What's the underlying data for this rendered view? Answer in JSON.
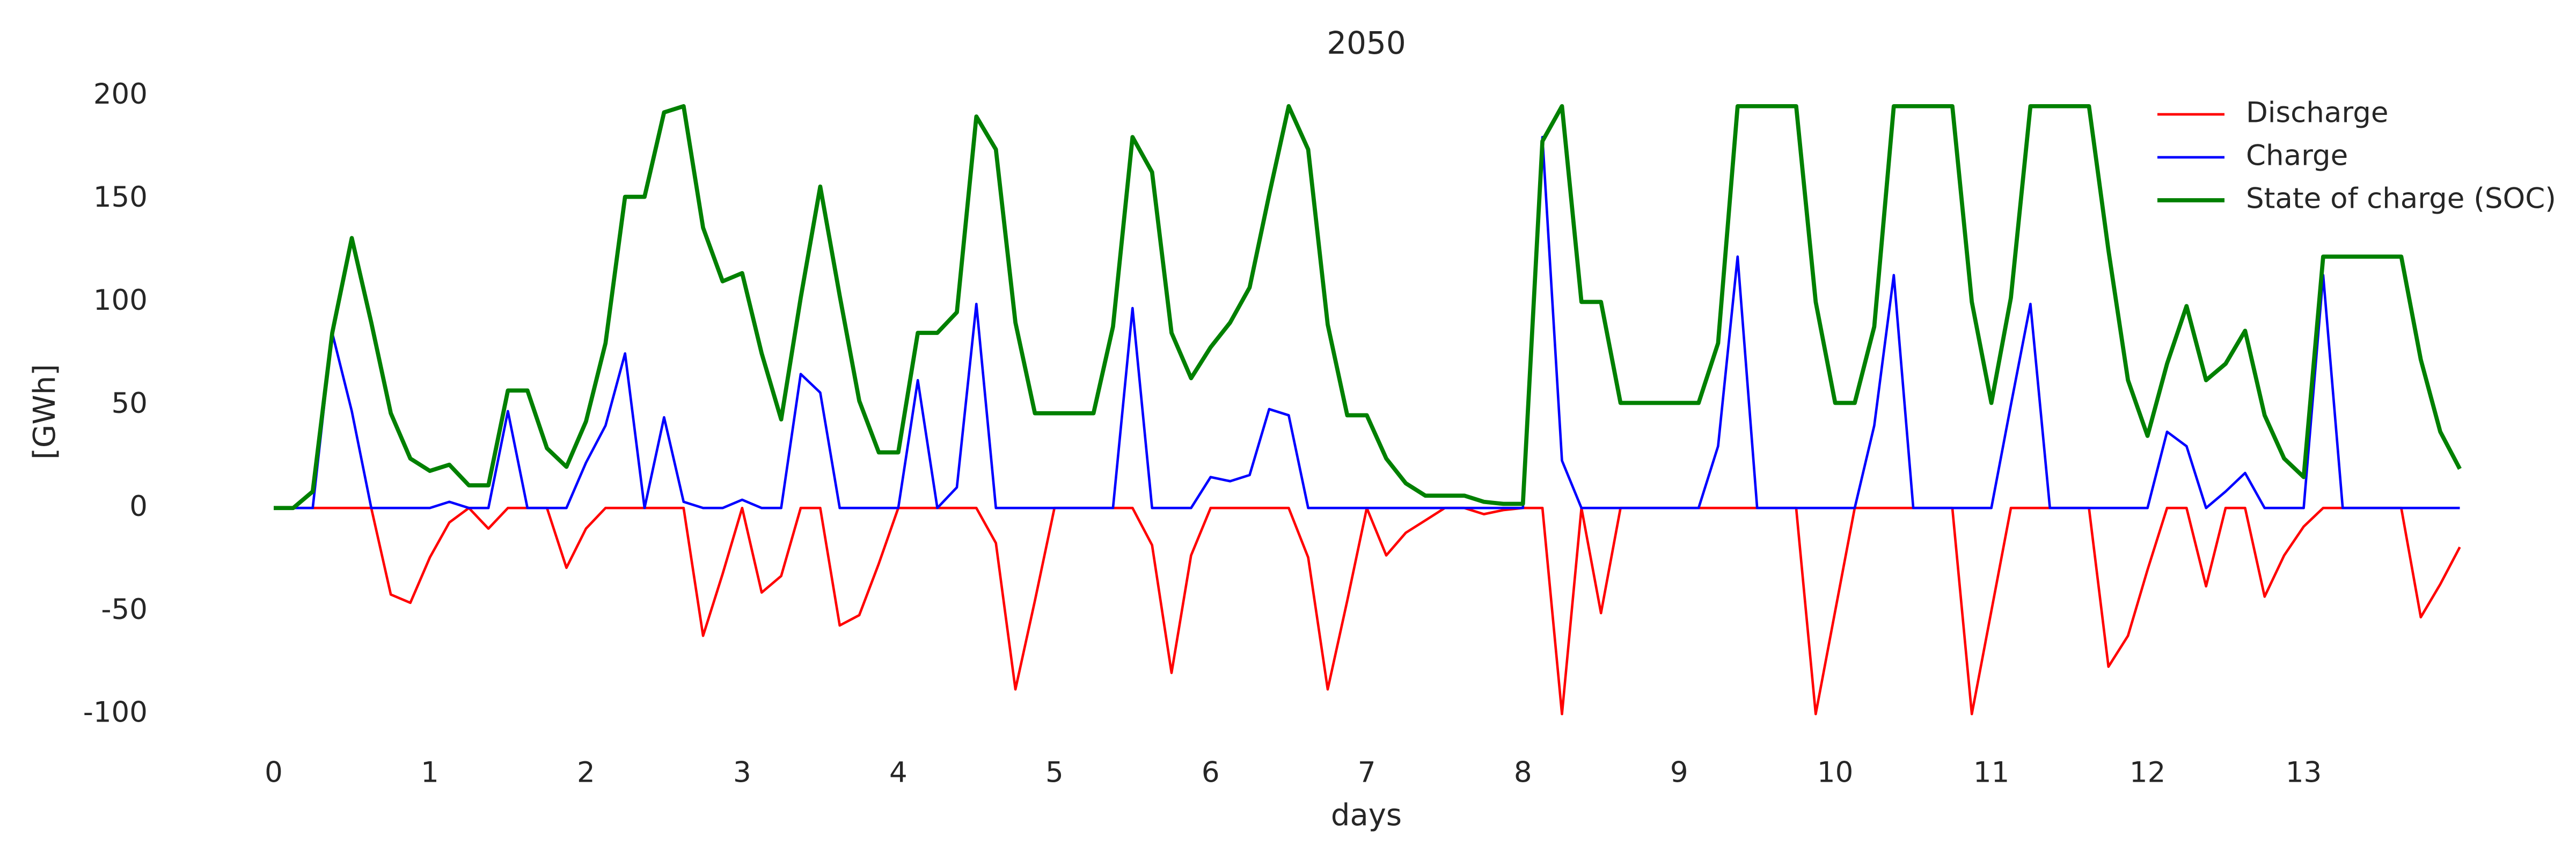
{
  "chart_data": {
    "type": "line",
    "title": "2050",
    "xlabel": "days",
    "ylabel": "[GWh]",
    "x": [
      0,
      0.125,
      0.25,
      0.375,
      0.5,
      0.625,
      0.75,
      0.875,
      1,
      1.125,
      1.25,
      1.375,
      1.5,
      1.625,
      1.75,
      1.875,
      2,
      2.125,
      2.25,
      2.375,
      2.5,
      2.625,
      2.75,
      2.875,
      3,
      3.125,
      3.25,
      3.375,
      3.5,
      3.625,
      3.75,
      3.875,
      4,
      4.125,
      4.25,
      4.375,
      4.5,
      4.625,
      4.75,
      4.875,
      5,
      5.125,
      5.25,
      5.375,
      5.5,
      5.625,
      5.75,
      5.875,
      6,
      6.125,
      6.25,
      6.375,
      6.5,
      6.625,
      6.75,
      6.875,
      7,
      7.125,
      7.25,
      7.375,
      7.5,
      7.625,
      7.75,
      7.875,
      8,
      8.125,
      8.25,
      8.375,
      8.5,
      8.625,
      8.75,
      8.875,
      9,
      9.125,
      9.25,
      9.375,
      9.5,
      9.625,
      9.75,
      9.875,
      10,
      10.125,
      10.25,
      10.375,
      10.5,
      10.625,
      10.75,
      10.875,
      11,
      11.125,
      11.25,
      11.375,
      11.5,
      11.625,
      11.75,
      11.875,
      12,
      12.125,
      12.25,
      12.375,
      12.5,
      12.625,
      12.75,
      12.875,
      13,
      13.125,
      13.25,
      13.375,
      13.5,
      13.625,
      13.75,
      13.875,
      14
    ],
    "series": [
      {
        "name": "Discharge",
        "color": "#ff0000",
        "width": 1.5,
        "values": [
          0,
          0,
          0,
          0,
          0,
          0,
          -42,
          -46,
          -24,
          -7,
          0,
          -10,
          0,
          0,
          0,
          -29,
          -10,
          0,
          0,
          0,
          0,
          0,
          -62,
          -32,
          0,
          -41,
          -33,
          0,
          0,
          -57,
          -52,
          -27,
          0,
          0,
          0,
          0,
          0,
          -17,
          -88,
          -45,
          0,
          0,
          0,
          0,
          0,
          -18,
          -80,
          -23,
          0,
          0,
          0,
          0,
          0,
          -24,
          -88,
          -45,
          0,
          -23,
          -12,
          -6,
          0,
          0,
          -3,
          -1,
          0,
          0,
          -100,
          0,
          -51,
          0,
          0,
          0,
          0,
          0,
          0,
          0,
          0,
          0,
          0,
          -100,
          -50,
          0,
          0,
          0,
          0,
          0,
          0,
          -100,
          -50,
          0,
          0,
          0,
          0,
          0,
          -77,
          -62,
          -30,
          0,
          0,
          -38,
          0,
          0,
          -43,
          -23,
          -9,
          0,
          0,
          0,
          0,
          0,
          -53,
          -37,
          -19
        ]
      },
      {
        "name": "Charge",
        "color": "#0000ff",
        "width": 1.5,
        "values": [
          0,
          0,
          0,
          85,
          47,
          0,
          0,
          0,
          0,
          3,
          0,
          0,
          47,
          0,
          0,
          0,
          22,
          40,
          75,
          0,
          44,
          3,
          0,
          0,
          4,
          0,
          0,
          65,
          56,
          0,
          0,
          0,
          0,
          62,
          0,
          10,
          99,
          0,
          0,
          0,
          0,
          0,
          0,
          0,
          97,
          0,
          0,
          0,
          15,
          13,
          16,
          48,
          45,
          0,
          0,
          0,
          0,
          0,
          0,
          0,
          0,
          0,
          0,
          0,
          0,
          180,
          23,
          0,
          0,
          0,
          0,
          0,
          0,
          0,
          30,
          122,
          0,
          0,
          0,
          0,
          0,
          0,
          40,
          113,
          0,
          0,
          0,
          0,
          0,
          50,
          99,
          0,
          0,
          0,
          0,
          0,
          0,
          37,
          30,
          0,
          8,
          17,
          0,
          0,
          0,
          113,
          0,
          0,
          0,
          0,
          0,
          0,
          0
        ]
      },
      {
        "name": "State of charge (SOC)",
        "color": "#008000",
        "width": 2.5,
        "values": [
          0,
          0,
          8,
          85,
          131,
          90,
          46,
          24,
          18,
          21,
          11,
          11,
          57,
          57,
          29,
          20,
          42,
          80,
          151,
          151,
          192,
          195,
          136,
          110,
          114,
          75,
          43,
          102,
          156,
          103,
          52,
          27,
          27,
          85,
          85,
          95,
          190,
          174,
          90,
          46,
          46,
          46,
          46,
          88,
          180,
          163,
          85,
          63,
          78,
          90,
          107,
          152,
          195,
          174,
          89,
          45,
          45,
          24,
          12,
          6,
          6,
          6,
          3,
          2,
          2,
          178,
          195,
          100,
          100,
          51,
          51,
          51,
          51,
          51,
          80,
          195,
          195,
          195,
          195,
          100,
          51,
          51,
          88,
          195,
          195,
          195,
          195,
          100,
          51,
          102,
          195,
          195,
          195,
          195,
          125,
          62,
          35,
          70,
          98,
          62,
          70,
          86,
          45,
          24,
          15,
          122,
          122,
          122,
          122,
          122,
          72,
          37,
          19
        ]
      }
    ],
    "xlim": [
      -0.5,
      14.5
    ],
    "ylim": [
      -125,
      215
    ],
    "xticks": [
      0,
      1,
      2,
      3,
      4,
      5,
      6,
      7,
      8,
      9,
      10,
      11,
      12,
      13
    ],
    "yticks": [
      -100,
      -50,
      0,
      50,
      100,
      150,
      200
    ],
    "legend": "upper right",
    "grid": false
  }
}
